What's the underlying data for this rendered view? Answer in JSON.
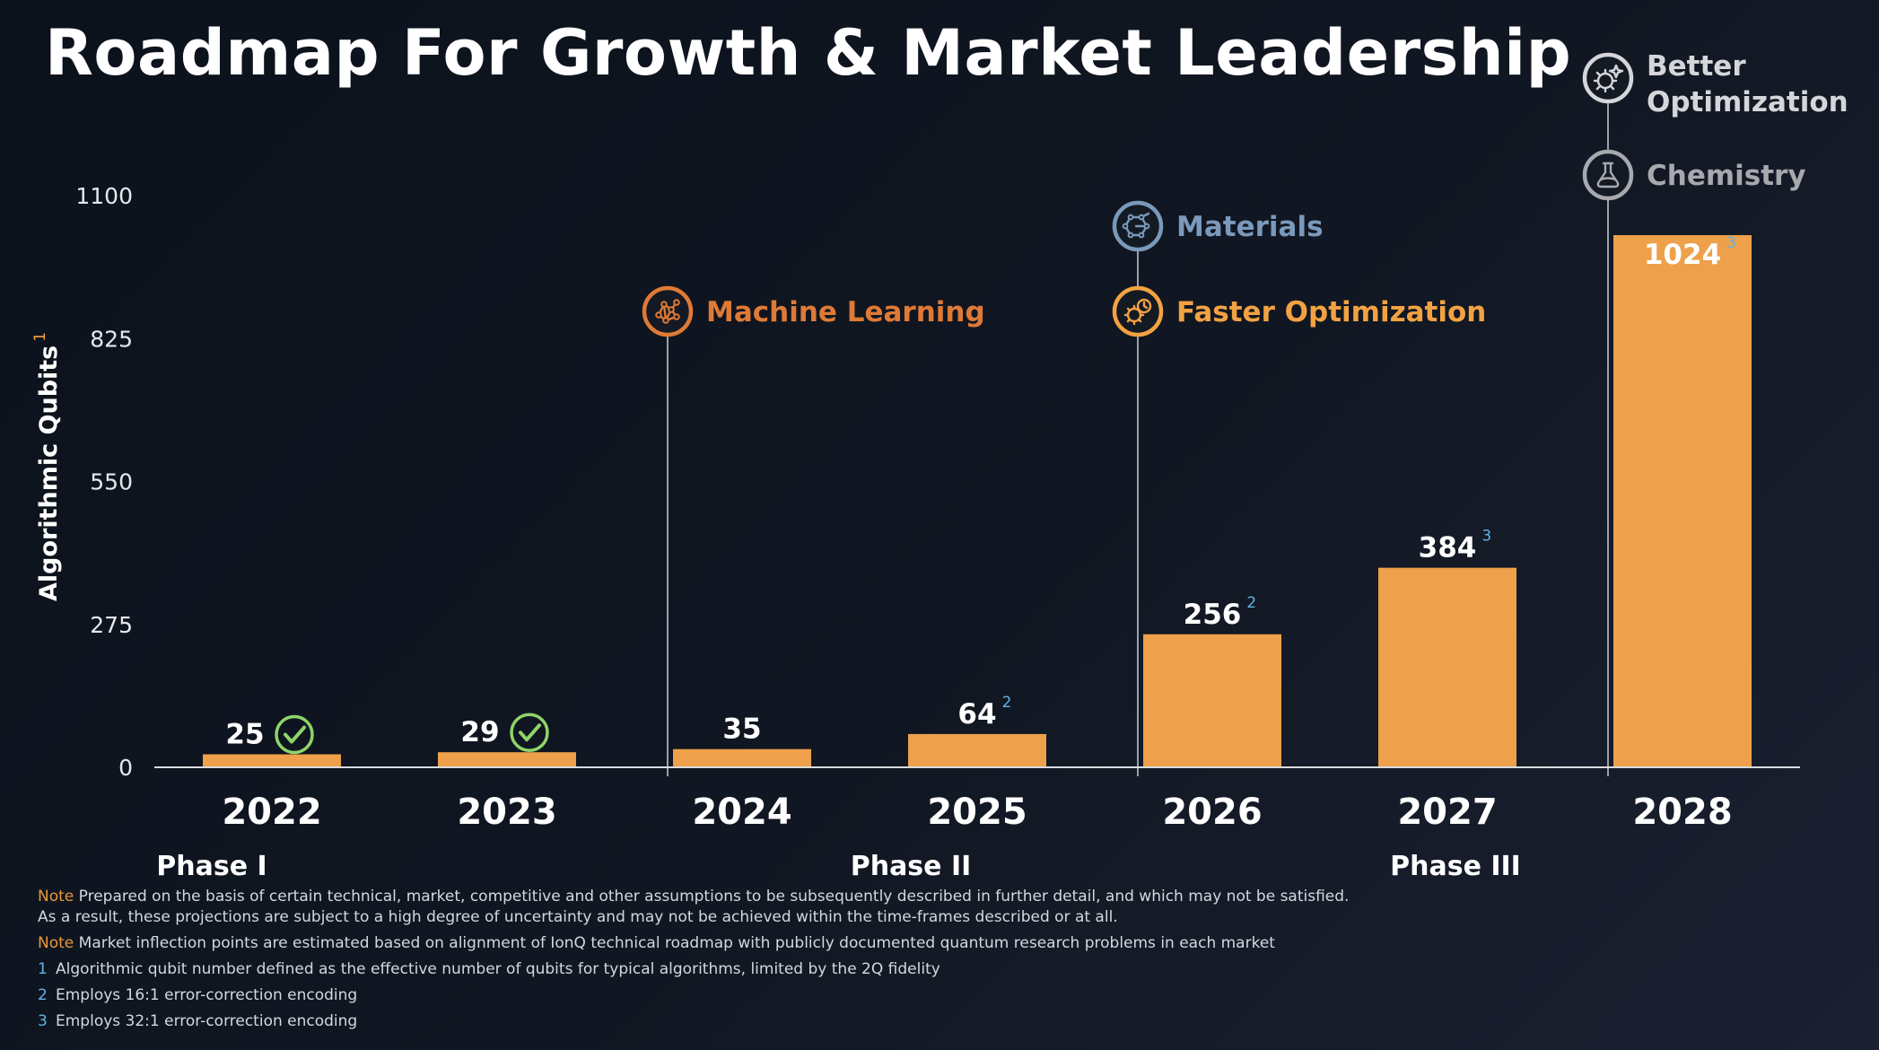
{
  "title": "Roadmap For Growth & Market Leadership",
  "colors": {
    "bar": "#eea04b",
    "check": "#8ed46a",
    "superscript": "#5fb4e8",
    "ml": "#df7a36",
    "faster_opt": "#f3a242",
    "materials": "#7a99bb",
    "chemistry": "#a7a9ae",
    "better_opt": "#d4d6da"
  },
  "chart_data": {
    "type": "bar",
    "categories": [
      "2022",
      "2023",
      "2024",
      "2025",
      "2026",
      "2027",
      "2028"
    ],
    "values": [
      25,
      29,
      35,
      64,
      256,
      384,
      1024
    ],
    "value_labels": [
      "25",
      "29",
      "35",
      "64",
      "256",
      "384",
      "1024"
    ],
    "superscripts": [
      "",
      "",
      "",
      "2",
      "2",
      "3",
      "3"
    ],
    "achieved": [
      true,
      true,
      false,
      false,
      false,
      false,
      false
    ],
    "ylabel": "Algorithmic Qubits",
    "ylabel_superscript": "1",
    "ylim": [
      0,
      1100
    ],
    "yticks": [
      0,
      275,
      550,
      825,
      1100
    ],
    "grid": false,
    "phases": [
      {
        "label": "Phase I",
        "category": "2022"
      },
      {
        "label": "Phase II",
        "category": "2025"
      },
      {
        "label": "Phase III",
        "category": "2027"
      }
    ],
    "annotations": [
      {
        "label": "Machine Learning",
        "category": "2024",
        "icon": "neural-network-icon",
        "color_key": "ml"
      },
      {
        "label": "Faster Optimization",
        "category": "2026",
        "icon": "gear-clock-icon",
        "color_key": "faster_opt"
      },
      {
        "label": "Materials",
        "category": "2026",
        "icon": "molecule-icon",
        "color_key": "materials"
      },
      {
        "label": "Chemistry",
        "category": "2028",
        "icon": "flask-icon",
        "color_key": "chemistry"
      },
      {
        "label": "Better Optimization",
        "category": "2028",
        "icon": "gear-sparkle-icon",
        "color_key": "better_opt"
      }
    ]
  },
  "notes": [
    {
      "tag": "Note",
      "text": "Prepared on the basis of certain technical, market, competitive and other assumptions to be subsequently described in further detail, and which may not be satisfied.",
      "text2": "As a result, these projections are subject to a high degree of uncertainty and may not be achieved within the time-frames described or at all."
    },
    {
      "tag": "Note",
      "text": "Market inflection points are estimated based on alignment of IonQ technical roadmap with publicly documented quantum research problems in each market"
    }
  ],
  "footnotes": [
    {
      "num": "1",
      "text": "Algorithmic qubit number defined as the effective number of qubits for typical algorithms, limited by the 2Q fidelity"
    },
    {
      "num": "2",
      "text": "Employs 16:1 error-correction encoding"
    },
    {
      "num": "3",
      "text": "Employs 32:1 error-correction encoding"
    }
  ]
}
